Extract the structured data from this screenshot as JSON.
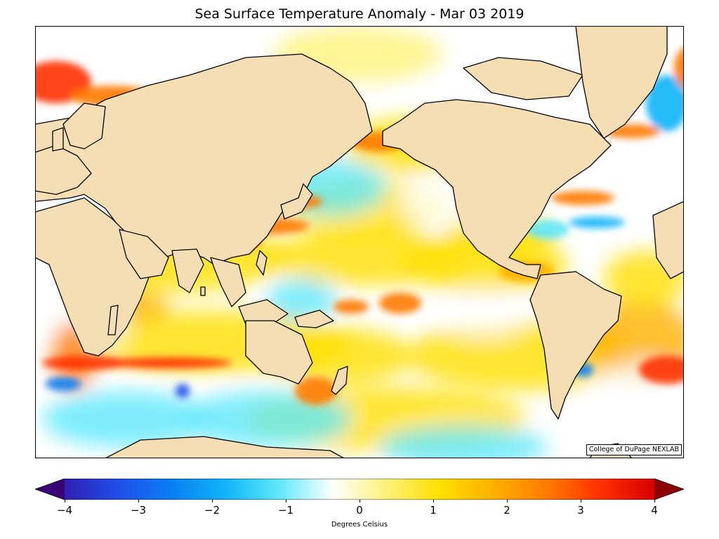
{
  "map": {
    "title": "Sea Surface Temperature Anomaly - Mar 03 2019",
    "credit": "College of DuPage NEXLAB",
    "colorbar": {
      "label": "Degrees Celsius",
      "min": -4,
      "max": 4,
      "ticks": [
        "−4",
        "−3",
        "−2",
        "−1",
        "0",
        "1",
        "2",
        "3",
        "4"
      ],
      "colors": [
        "#3a0074",
        "#2f1fb4",
        "#1f4fe8",
        "#0a7ff5",
        "#10b4f8",
        "#5fe8fb",
        "#ffffff",
        "#fff27a",
        "#ffe000",
        "#ffb000",
        "#ff7a00",
        "#ff3000",
        "#d80000",
        "#8c0000"
      ],
      "extend": "both"
    },
    "colors": {
      "land": "#f5deb3",
      "coastline": "#000000",
      "neutral_ocean": "#ffffff"
    }
  }
}
